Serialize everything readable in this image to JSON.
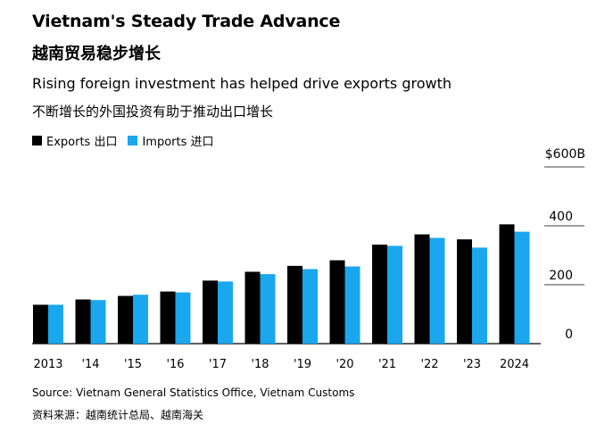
{
  "header": {
    "title": "Vietnam's Steady Trade Advance",
    "title_cn": "越南贸易稳步增长",
    "subtitle": "Rising foreign investment has helped drive exports growth",
    "subtitle_cn": "不断增长的外国投资有助于推动出口增长"
  },
  "colors": {
    "exports": "#000000",
    "imports": "#1aa7ee",
    "baseline": "#000000",
    "text": "#000000"
  },
  "chart_data": {
    "type": "bar",
    "categories": [
      "2013",
      "'14",
      "'15",
      "'16",
      "'17",
      "'18",
      "'19",
      "'20",
      "'21",
      "'22",
      "'23",
      "2024"
    ],
    "series": [
      {
        "name": "Exports 出口",
        "values": [
          132,
          150,
          162,
          177,
          214,
          244,
          264,
          283,
          336,
          371,
          354,
          405
        ]
      },
      {
        "name": "Imports 进口",
        "values": [
          132,
          148,
          166,
          174,
          211,
          236,
          253,
          262,
          332,
          359,
          326,
          380
        ]
      }
    ],
    "y_ticks": [
      "0",
      "200",
      "400",
      "$600B"
    ],
    "ylim": [
      0,
      600
    ],
    "legend": "top-left",
    "grid": false
  },
  "footer": {
    "source": "Source: Vietnam General Statistics Office, Vietnam Customs",
    "source_cn": "资料来源：越南统计总局、越南海关"
  }
}
